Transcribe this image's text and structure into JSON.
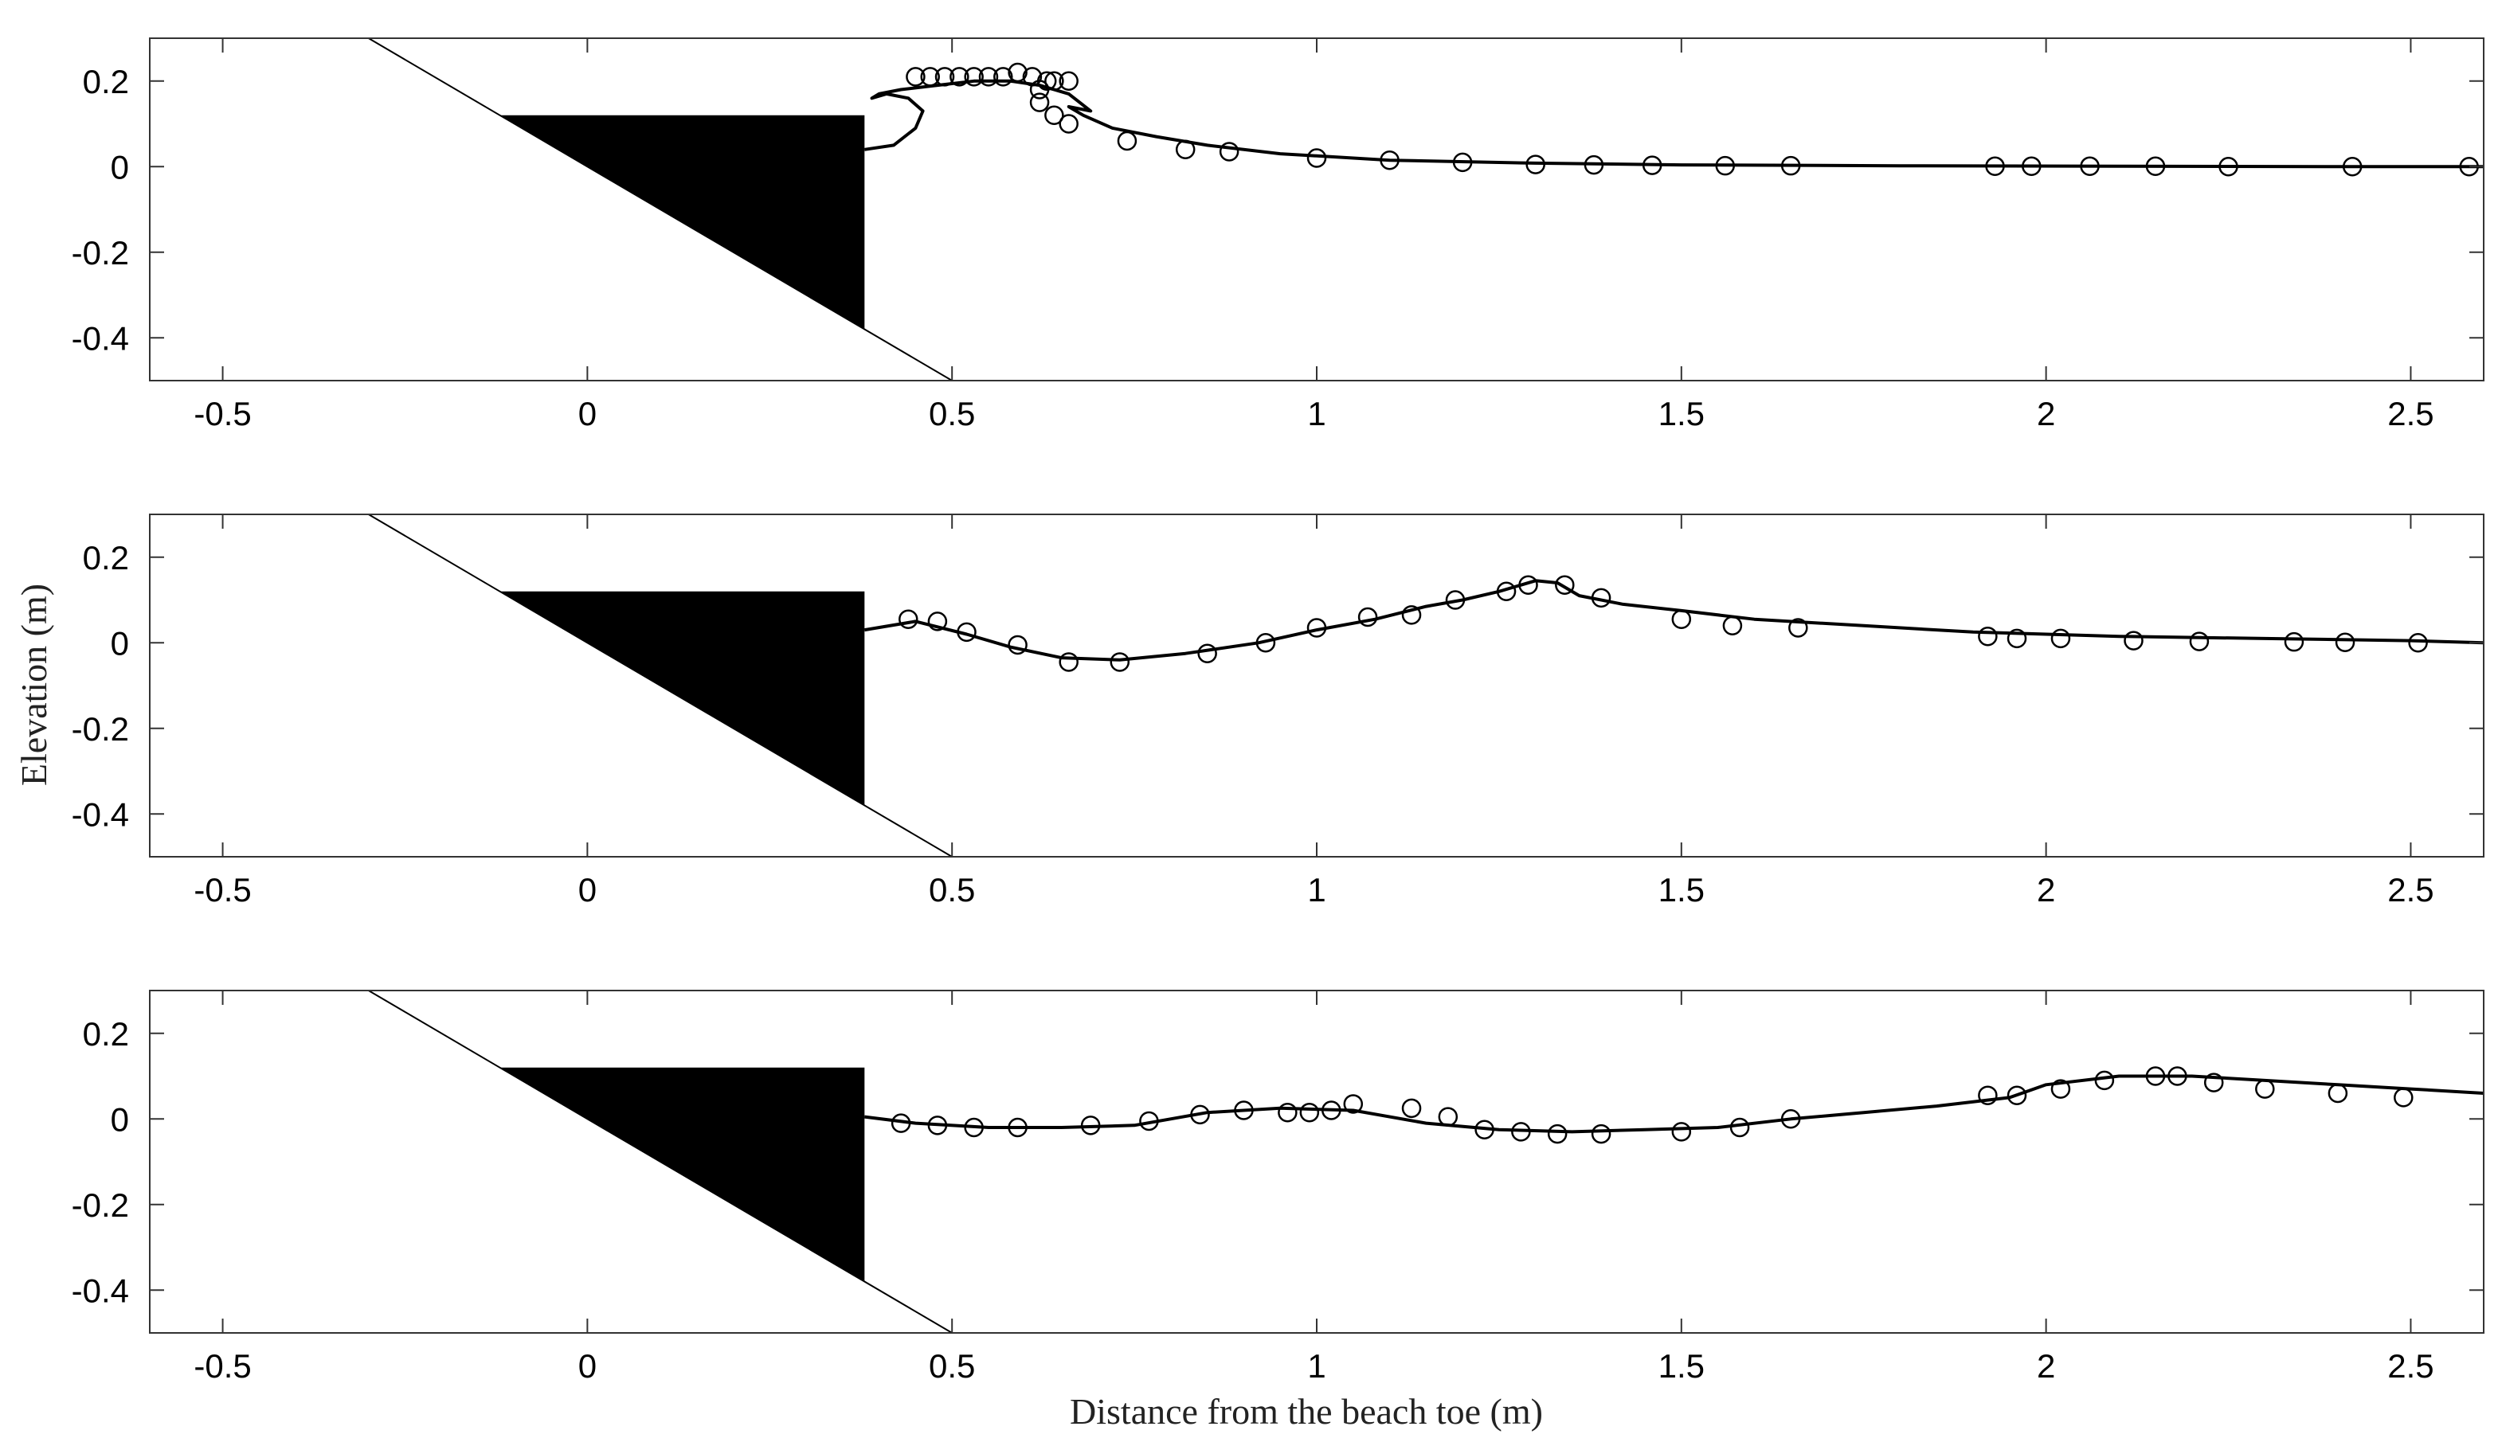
{
  "chart_data": {
    "type": "line",
    "xlabel": "Distance from the beach toe (m)",
    "ylabel": "Elevation (m)",
    "xlim": [
      -0.6,
      2.6
    ],
    "ylim": [
      -0.5,
      0.3
    ],
    "xticks": [
      -0.5,
      0,
      0.5,
      1,
      1.5,
      2,
      2.5
    ],
    "xtick_labels": [
      "-0.5",
      "0",
      "0.5",
      "1",
      "1.5",
      "2",
      "2.5"
    ],
    "yticks": [
      0.2,
      0,
      -0.2,
      -0.4
    ],
    "ytick_labels": [
      "0.2",
      "0",
      "-0.2",
      "-0.4"
    ],
    "grid": false,
    "beach_slope_line": [
      [
        -0.3,
        0.3
      ],
      [
        0.5,
        -0.5
      ]
    ],
    "structure_polygon": [
      [
        -0.12,
        0.12
      ],
      [
        0.38,
        0.12
      ],
      [
        0.38,
        -0.38
      ]
    ],
    "panels": [
      {
        "name": "",
        "surface": [
          [
            0.38,
            0.04
          ],
          [
            0.42,
            0.05
          ],
          [
            0.45,
            0.09
          ],
          [
            0.46,
            0.13
          ],
          [
            0.44,
            0.16
          ],
          [
            0.41,
            0.17
          ],
          [
            0.39,
            0.16
          ],
          [
            0.4,
            0.17
          ],
          [
            0.43,
            0.18
          ],
          [
            0.48,
            0.19
          ],
          [
            0.53,
            0.2
          ],
          [
            0.58,
            0.2
          ],
          [
            0.62,
            0.19
          ],
          [
            0.66,
            0.17
          ],
          [
            0.69,
            0.13
          ],
          [
            0.66,
            0.14
          ],
          [
            0.68,
            0.12
          ],
          [
            0.72,
            0.09
          ],
          [
            0.78,
            0.07
          ],
          [
            0.85,
            0.05
          ],
          [
            0.95,
            0.03
          ],
          [
            1.1,
            0.015
          ],
          [
            1.3,
            0.008
          ],
          [
            1.5,
            0.004
          ],
          [
            1.8,
            0.002
          ],
          [
            2.1,
            0.001
          ],
          [
            2.4,
            0.0
          ],
          [
            2.6,
            0.0
          ]
        ],
        "points": [
          [
            0.45,
            0.21
          ],
          [
            0.47,
            0.21
          ],
          [
            0.49,
            0.21
          ],
          [
            0.51,
            0.21
          ],
          [
            0.53,
            0.21
          ],
          [
            0.55,
            0.21
          ],
          [
            0.57,
            0.21
          ],
          [
            0.59,
            0.22
          ],
          [
            0.61,
            0.21
          ],
          [
            0.62,
            0.18
          ],
          [
            0.63,
            0.2
          ],
          [
            0.64,
            0.2
          ],
          [
            0.66,
            0.2
          ],
          [
            0.62,
            0.15
          ],
          [
            0.64,
            0.12
          ],
          [
            0.66,
            0.1
          ],
          [
            0.74,
            0.06
          ],
          [
            0.82,
            0.04
          ],
          [
            0.88,
            0.035
          ],
          [
            1.0,
            0.02
          ],
          [
            1.1,
            0.015
          ],
          [
            1.2,
            0.01
          ],
          [
            1.3,
            0.005
          ],
          [
            1.38,
            0.004
          ],
          [
            1.46,
            0.003
          ],
          [
            1.56,
            0.002
          ],
          [
            1.65,
            0.002
          ],
          [
            1.93,
            0.001
          ],
          [
            1.98,
            0.001
          ],
          [
            2.06,
            0.001
          ],
          [
            2.15,
            0.001
          ],
          [
            2.25,
            0.0
          ],
          [
            2.42,
            0.0
          ],
          [
            2.58,
            0.0
          ]
        ]
      },
      {
        "name": "",
        "surface": [
          [
            0.38,
            0.03
          ],
          [
            0.45,
            0.05
          ],
          [
            0.52,
            0.02
          ],
          [
            0.58,
            -0.01
          ],
          [
            0.65,
            -0.035
          ],
          [
            0.73,
            -0.04
          ],
          [
            0.82,
            -0.025
          ],
          [
            0.92,
            0.0
          ],
          [
            1.0,
            0.03
          ],
          [
            1.08,
            0.055
          ],
          [
            1.15,
            0.085
          ],
          [
            1.2,
            0.1
          ],
          [
            1.25,
            0.12
          ],
          [
            1.3,
            0.145
          ],
          [
            1.33,
            0.14
          ],
          [
            1.36,
            0.11
          ],
          [
            1.42,
            0.09
          ],
          [
            1.5,
            0.075
          ],
          [
            1.6,
            0.055
          ],
          [
            1.75,
            0.04
          ],
          [
            1.9,
            0.025
          ],
          [
            2.1,
            0.015
          ],
          [
            2.3,
            0.01
          ],
          [
            2.5,
            0.005
          ],
          [
            2.6,
            0.0
          ]
        ],
        "points": [
          [
            0.44,
            0.055
          ],
          [
            0.48,
            0.05
          ],
          [
            0.52,
            0.025
          ],
          [
            0.59,
            -0.005
          ],
          [
            0.66,
            -0.045
          ],
          [
            0.73,
            -0.045
          ],
          [
            0.85,
            -0.025
          ],
          [
            0.93,
            0.0
          ],
          [
            1.0,
            0.035
          ],
          [
            1.07,
            0.06
          ],
          [
            1.13,
            0.065
          ],
          [
            1.19,
            0.1
          ],
          [
            1.26,
            0.12
          ],
          [
            1.29,
            0.135
          ],
          [
            1.34,
            0.135
          ],
          [
            1.39,
            0.105
          ],
          [
            1.5,
            0.055
          ],
          [
            1.57,
            0.04
          ],
          [
            1.66,
            0.035
          ],
          [
            1.92,
            0.015
          ],
          [
            1.96,
            0.01
          ],
          [
            2.02,
            0.01
          ],
          [
            2.12,
            0.005
          ],
          [
            2.21,
            0.003
          ],
          [
            2.34,
            0.002
          ],
          [
            2.41,
            0.001
          ],
          [
            2.51,
            0.0
          ]
        ]
      },
      {
        "name": "",
        "surface": [
          [
            0.38,
            0.005
          ],
          [
            0.45,
            -0.01
          ],
          [
            0.55,
            -0.02
          ],
          [
            0.65,
            -0.02
          ],
          [
            0.75,
            -0.015
          ],
          [
            0.85,
            0.015
          ],
          [
            0.95,
            0.025
          ],
          [
            1.05,
            0.02
          ],
          [
            1.15,
            -0.01
          ],
          [
            1.25,
            -0.025
          ],
          [
            1.35,
            -0.03
          ],
          [
            1.45,
            -0.025
          ],
          [
            1.55,
            -0.02
          ],
          [
            1.65,
            0.0
          ],
          [
            1.75,
            0.015
          ],
          [
            1.85,
            0.03
          ],
          [
            1.95,
            0.05
          ],
          [
            2.0,
            0.08
          ],
          [
            2.1,
            0.1
          ],
          [
            2.2,
            0.1
          ],
          [
            2.3,
            0.09
          ],
          [
            2.4,
            0.08
          ],
          [
            2.5,
            0.07
          ],
          [
            2.6,
            0.06
          ]
        ],
        "points": [
          [
            0.43,
            -0.01
          ],
          [
            0.48,
            -0.015
          ],
          [
            0.53,
            -0.02
          ],
          [
            0.59,
            -0.02
          ],
          [
            0.69,
            -0.015
          ],
          [
            0.77,
            -0.005
          ],
          [
            0.84,
            0.01
          ],
          [
            0.9,
            0.02
          ],
          [
            0.96,
            0.015
          ],
          [
            0.99,
            0.015
          ],
          [
            1.02,
            0.02
          ],
          [
            1.05,
            0.035
          ],
          [
            1.13,
            0.025
          ],
          [
            1.18,
            0.005
          ],
          [
            1.23,
            -0.025
          ],
          [
            1.28,
            -0.03
          ],
          [
            1.33,
            -0.035
          ],
          [
            1.39,
            -0.035
          ],
          [
            1.5,
            -0.03
          ],
          [
            1.58,
            -0.02
          ],
          [
            1.65,
            0.0
          ],
          [
            1.92,
            0.055
          ],
          [
            1.96,
            0.055
          ],
          [
            2.02,
            0.07
          ],
          [
            2.08,
            0.09
          ],
          [
            2.15,
            0.1
          ],
          [
            2.18,
            0.1
          ],
          [
            2.23,
            0.085
          ],
          [
            2.3,
            0.07
          ],
          [
            2.4,
            0.06
          ],
          [
            2.49,
            0.05
          ]
        ]
      }
    ]
  }
}
